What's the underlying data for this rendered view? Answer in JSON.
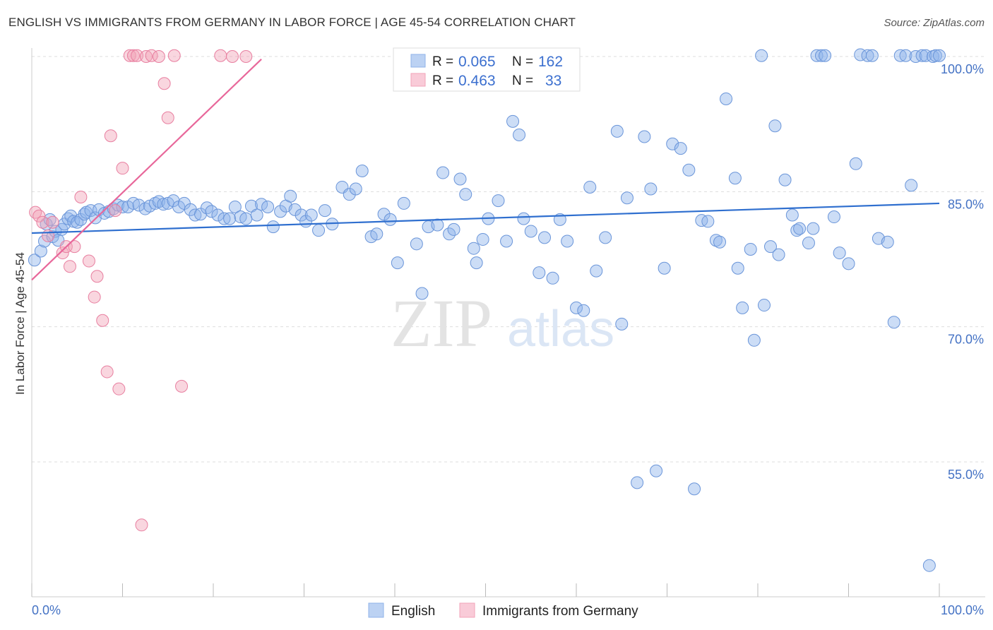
{
  "title": "ENGLISH VS IMMIGRANTS FROM GERMANY IN LABOR FORCE | AGE 45-54 CORRELATION CHART",
  "source": "Source: ZipAtlas.com",
  "watermark": {
    "zip": "ZIP",
    "atlas": "atlas"
  },
  "stats_legend": {
    "rows": [
      {
        "r_label": "R =",
        "r_value": "0.065",
        "n_label": "N =",
        "n_value": "162",
        "color": "#8fb3ea"
      },
      {
        "r_label": "R =",
        "r_value": "0.463",
        "n_label": "N =",
        "n_value": "33",
        "color": "#f2a3b9"
      }
    ]
  },
  "chart_data": {
    "type": "scatter",
    "title": "ENGLISH VS IMMIGRANTS FROM GERMANY IN LABOR FORCE | AGE 45-54 CORRELATION CHART",
    "xlabel": "",
    "ylabel": "In Labor Force | Age 45-54",
    "xlim": [
      0,
      100
    ],
    "ylim": [
      40,
      102
    ],
    "x_tick_labels": [
      "0.0%",
      "100.0%"
    ],
    "y_ticks": [
      {
        "value": 100,
        "label": "100.0%"
      },
      {
        "value": 85,
        "label": "85.0%"
      },
      {
        "value": 70,
        "label": "70.0%"
      },
      {
        "value": 55,
        "label": "55.0%"
      }
    ],
    "grid": true,
    "legend_position": "bottom",
    "series": [
      {
        "name": "English",
        "color": "#8fb3ea",
        "stroke": "#6a95d9",
        "line_color": "#2f6fcf",
        "trend": {
          "x": [
            0,
            100
          ],
          "y": [
            80.4,
            83.7
          ]
        },
        "points": [
          [
            0.3,
            77.4
          ],
          [
            1.0,
            78.4
          ],
          [
            1.4,
            79.5
          ],
          [
            1.6,
            81.4
          ],
          [
            2.0,
            81.9
          ],
          [
            2.3,
            80.0
          ],
          [
            2.6,
            80.6
          ],
          [
            2.9,
            79.6
          ],
          [
            3.3,
            80.8
          ],
          [
            3.6,
            81.4
          ],
          [
            4.0,
            82.0
          ],
          [
            4.3,
            82.3
          ],
          [
            4.6,
            81.7
          ],
          [
            5.0,
            81.6
          ],
          [
            5.4,
            81.9
          ],
          [
            5.8,
            82.5
          ],
          [
            6.0,
            82.7
          ],
          [
            6.5,
            82.9
          ],
          [
            7.0,
            82.1
          ],
          [
            7.4,
            83.0
          ],
          [
            8.0,
            82.6
          ],
          [
            8.5,
            82.8
          ],
          [
            9.0,
            83.1
          ],
          [
            9.5,
            83.5
          ],
          [
            10.0,
            83.3
          ],
          [
            10.6,
            83.3
          ],
          [
            11.2,
            83.7
          ],
          [
            11.8,
            83.5
          ],
          [
            12.5,
            83.1
          ],
          [
            13.0,
            83.4
          ],
          [
            13.6,
            83.7
          ],
          [
            14.0,
            83.9
          ],
          [
            14.5,
            83.6
          ],
          [
            15.0,
            83.7
          ],
          [
            15.6,
            84.0
          ],
          [
            16.2,
            83.3
          ],
          [
            16.8,
            83.7
          ],
          [
            17.5,
            83.0
          ],
          [
            18.0,
            82.4
          ],
          [
            18.6,
            82.5
          ],
          [
            19.3,
            83.2
          ],
          [
            19.8,
            82.8
          ],
          [
            20.5,
            82.4
          ],
          [
            21.2,
            82.0
          ],
          [
            21.8,
            82.0
          ],
          [
            22.4,
            83.3
          ],
          [
            23.0,
            82.2
          ],
          [
            23.6,
            82.0
          ],
          [
            24.2,
            83.4
          ],
          [
            24.8,
            82.4
          ],
          [
            25.3,
            83.6
          ],
          [
            26.0,
            83.3
          ],
          [
            26.6,
            81.1
          ],
          [
            27.4,
            82.8
          ],
          [
            28.0,
            83.4
          ],
          [
            28.5,
            84.5
          ],
          [
            29.0,
            83.0
          ],
          [
            29.7,
            82.4
          ],
          [
            30.2,
            81.7
          ],
          [
            30.8,
            82.4
          ],
          [
            31.6,
            80.7
          ],
          [
            32.3,
            82.9
          ],
          [
            33.1,
            81.4
          ],
          [
            34.2,
            85.5
          ],
          [
            35.0,
            84.7
          ],
          [
            35.7,
            85.3
          ],
          [
            36.4,
            87.3
          ],
          [
            37.4,
            80.0
          ],
          [
            38.0,
            80.3
          ],
          [
            38.8,
            82.5
          ],
          [
            39.5,
            81.9
          ],
          [
            40.3,
            77.1
          ],
          [
            41.0,
            83.7
          ],
          [
            42.4,
            79.2
          ],
          [
            43.0,
            73.7
          ],
          [
            43.7,
            81.1
          ],
          [
            44.7,
            81.3
          ],
          [
            45.3,
            87.1
          ],
          [
            46.0,
            80.3
          ],
          [
            46.5,
            80.8
          ],
          [
            47.2,
            86.4
          ],
          [
            47.8,
            84.7
          ],
          [
            48.7,
            78.7
          ],
          [
            49.0,
            77.1
          ],
          [
            49.7,
            79.7
          ],
          [
            50.3,
            82.0
          ],
          [
            51.4,
            84.0
          ],
          [
            52.3,
            79.5
          ],
          [
            53.0,
            92.8
          ],
          [
            53.7,
            91.3
          ],
          [
            54.2,
            82.0
          ],
          [
            55.0,
            80.6
          ],
          [
            55.9,
            76.0
          ],
          [
            56.5,
            79.9
          ],
          [
            57.4,
            75.4
          ],
          [
            58.2,
            81.9
          ],
          [
            59.0,
            79.5
          ],
          [
            60.0,
            72.1
          ],
          [
            60.8,
            71.8
          ],
          [
            61.5,
            85.5
          ],
          [
            62.2,
            76.2
          ],
          [
            63.2,
            79.9
          ],
          [
            64.5,
            91.7
          ],
          [
            65.0,
            70.3
          ],
          [
            65.6,
            84.3
          ],
          [
            66.7,
            52.7
          ],
          [
            67.5,
            91.1
          ],
          [
            68.2,
            85.3
          ],
          [
            68.8,
            54.0
          ],
          [
            69.7,
            76.5
          ],
          [
            70.6,
            90.3
          ],
          [
            71.5,
            89.8
          ],
          [
            72.4,
            87.4
          ],
          [
            73.0,
            52.0
          ],
          [
            73.8,
            81.8
          ],
          [
            74.5,
            81.7
          ],
          [
            75.4,
            79.6
          ],
          [
            75.8,
            79.4
          ],
          [
            76.5,
            95.3
          ],
          [
            77.5,
            86.5
          ],
          [
            77.8,
            76.5
          ],
          [
            78.3,
            72.1
          ],
          [
            79.2,
            78.6
          ],
          [
            79.6,
            68.5
          ],
          [
            80.4,
            100.1
          ],
          [
            80.7,
            72.4
          ],
          [
            81.4,
            78.9
          ],
          [
            81.9,
            92.3
          ],
          [
            82.3,
            78.0
          ],
          [
            83.0,
            86.3
          ],
          [
            83.8,
            82.4
          ],
          [
            84.3,
            80.7
          ],
          [
            84.6,
            80.9
          ],
          [
            85.6,
            79.3
          ],
          [
            86.1,
            80.9
          ],
          [
            86.5,
            100.1
          ],
          [
            87.0,
            100.1
          ],
          [
            87.4,
            100.1
          ],
          [
            88.4,
            82.2
          ],
          [
            89.0,
            78.2
          ],
          [
            90.0,
            77.0
          ],
          [
            90.8,
            88.1
          ],
          [
            91.3,
            100.2
          ],
          [
            92.1,
            100.1
          ],
          [
            92.6,
            100.1
          ],
          [
            93.3,
            79.8
          ],
          [
            94.3,
            79.4
          ],
          [
            95.0,
            70.5
          ],
          [
            95.7,
            100.1
          ],
          [
            96.3,
            100.1
          ],
          [
            96.9,
            85.7
          ],
          [
            97.4,
            100.0
          ],
          [
            98.1,
            100.1
          ],
          [
            98.5,
            100.1
          ],
          [
            98.9,
            43.5
          ],
          [
            99.3,
            100.0
          ],
          [
            99.6,
            100.1
          ],
          [
            100.0,
            100.1
          ]
        ]
      },
      {
        "name": "Immigrants from Germany",
        "color": "#f2a3b9",
        "stroke": "#e87fa0",
        "line_color": "#e8679a",
        "trend": {
          "x": [
            0,
            25.3
          ],
          "y": [
            75.2,
            99.7
          ]
        },
        "points": [
          [
            0.4,
            82.7
          ],
          [
            0.8,
            82.3
          ],
          [
            1.2,
            81.6
          ],
          [
            1.8,
            80.1
          ],
          [
            2.3,
            81.6
          ],
          [
            3.4,
            78.2
          ],
          [
            3.8,
            78.9
          ],
          [
            4.2,
            76.7
          ],
          [
            4.7,
            78.9
          ],
          [
            5.4,
            84.4
          ],
          [
            6.3,
            77.3
          ],
          [
            6.9,
            73.3
          ],
          [
            7.2,
            75.6
          ],
          [
            7.8,
            70.7
          ],
          [
            8.3,
            65.0
          ],
          [
            8.7,
            91.2
          ],
          [
            9.2,
            82.9
          ],
          [
            9.6,
            63.1
          ],
          [
            10.0,
            87.6
          ],
          [
            10.8,
            100.1
          ],
          [
            11.2,
            100.1
          ],
          [
            11.6,
            100.1
          ],
          [
            12.1,
            48.0
          ],
          [
            12.6,
            100.0
          ],
          [
            13.2,
            100.1
          ],
          [
            14.0,
            100.0
          ],
          [
            14.6,
            97.0
          ],
          [
            15.0,
            93.2
          ],
          [
            15.7,
            100.1
          ],
          [
            16.5,
            63.4
          ],
          [
            20.8,
            100.1
          ],
          [
            22.1,
            100.0
          ],
          [
            23.6,
            100.0
          ]
        ]
      }
    ]
  }
}
